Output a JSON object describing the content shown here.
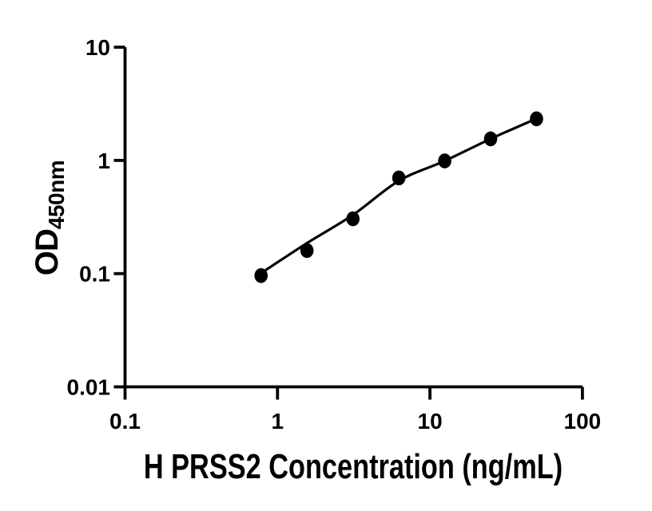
{
  "figure": {
    "background": "#ffffff",
    "ink_color": "#000000"
  },
  "chart_data": {
    "type": "scatter",
    "title": "",
    "xlabel": "H PRSS2 Concentration (ng/mL)",
    "ylabel_main": "OD",
    "ylabel_sub": "450nm",
    "grid": false,
    "legend": false,
    "x_axis": {
      "scale": "log",
      "range": [
        0.1,
        100
      ],
      "ticks": [
        0.1,
        1,
        10,
        100
      ],
      "tick_labels": [
        "0.1",
        "1",
        "10",
        "100"
      ]
    },
    "y_axis": {
      "scale": "log",
      "range": [
        0.01,
        10
      ],
      "ticks": [
        10,
        1,
        0.1,
        0.01
      ],
      "tick_labels": [
        "10",
        "1",
        "0.1",
        "0.01"
      ]
    },
    "series": [
      {
        "marker": "filled-circle",
        "color": "#000000",
        "x": [
          0.78,
          1.56,
          3.125,
          6.25,
          12.5,
          25,
          50
        ],
        "y": [
          0.096,
          0.16,
          0.305,
          0.7,
          0.99,
          1.55,
          2.33
        ]
      }
    ],
    "fit_curve": {
      "color": "#000000",
      "x": [
        0.78,
        1.56,
        3.125,
        6.25,
        12.5,
        25,
        50
      ],
      "y": [
        0.101,
        0.186,
        0.33,
        0.66,
        0.99,
        1.55,
        2.34
      ]
    }
  }
}
